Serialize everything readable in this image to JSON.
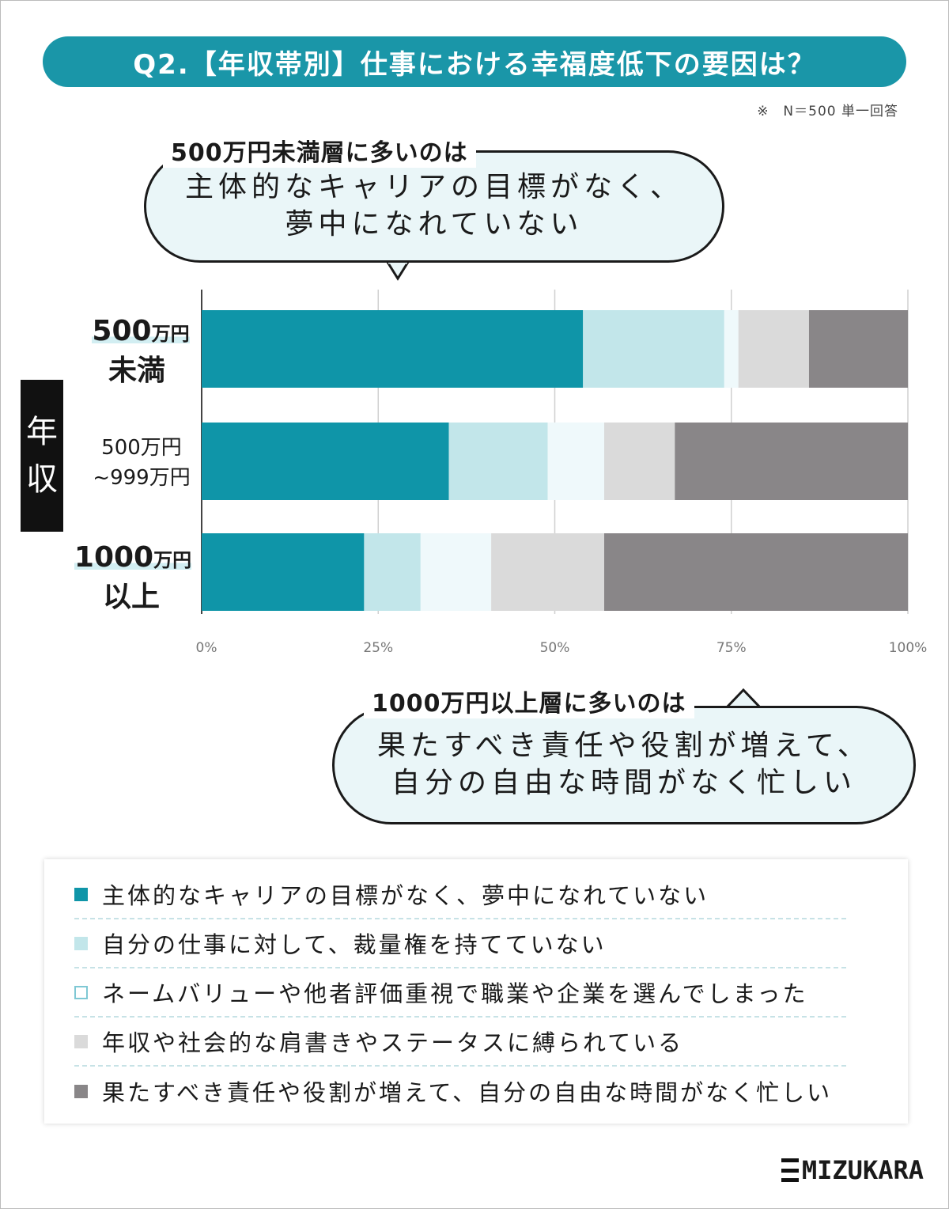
{
  "title": "Q2.【年収帯別】仕事における幸福度低下の要因は？",
  "note": "※　N＝500 単一回答",
  "side_label": [
    "年",
    "収"
  ],
  "callout_top": {
    "heading": "500万円未満層に多いのは",
    "lines": [
      "主体的なキャリアの目標がなく、",
      "夢中になれていない"
    ]
  },
  "callout_bottom": {
    "heading": "1000万円以上層に多いのは",
    "lines": [
      "果たすべき責任や役割が増えて、",
      "自分の自由な時間がなく忙しい"
    ]
  },
  "row_labels": [
    {
      "amount": "500",
      "unit": "万円",
      "suffix": "未満"
    },
    {
      "line1": "500万円",
      "line2": "~999万円"
    },
    {
      "amount": "1000",
      "unit": "万円",
      "suffix": "以上"
    }
  ],
  "colors": {
    "accent": "#1a96a8",
    "c1": "#0f95a8",
    "c2": "#c2e6ea",
    "c3": "#eff9fb",
    "c4": "#dadada",
    "c5": "#898688"
  },
  "chart_data": {
    "type": "bar",
    "orientation": "horizontal-stacked-100",
    "categories": [
      "500万円未満",
      "500万円~999万円",
      "1000万円以上"
    ],
    "series": [
      {
        "name": "主体的なキャリアの目標がなく、夢中になれていない",
        "values": [
          54,
          35,
          23
        ]
      },
      {
        "name": "自分の仕事に対して、裁量権を持てていない",
        "values": [
          20,
          14,
          8
        ]
      },
      {
        "name": "ネームバリューや他者評価重視で職業や企業を選んでしまった",
        "values": [
          2,
          8,
          10
        ]
      },
      {
        "name": "年収や社会的な肩書きやステータスに縛られている",
        "values": [
          10,
          10,
          16
        ]
      },
      {
        "name": "果たすべき責任や役割が増えて、自分の自由な時間がなく忙しい",
        "values": [
          14,
          33,
          43
        ]
      }
    ],
    "xlim": [
      0,
      100
    ],
    "xticks": [
      "0%",
      "25%",
      "50%",
      "75%",
      "100%"
    ],
    "grid": true
  },
  "brand": "MIZUKARA"
}
